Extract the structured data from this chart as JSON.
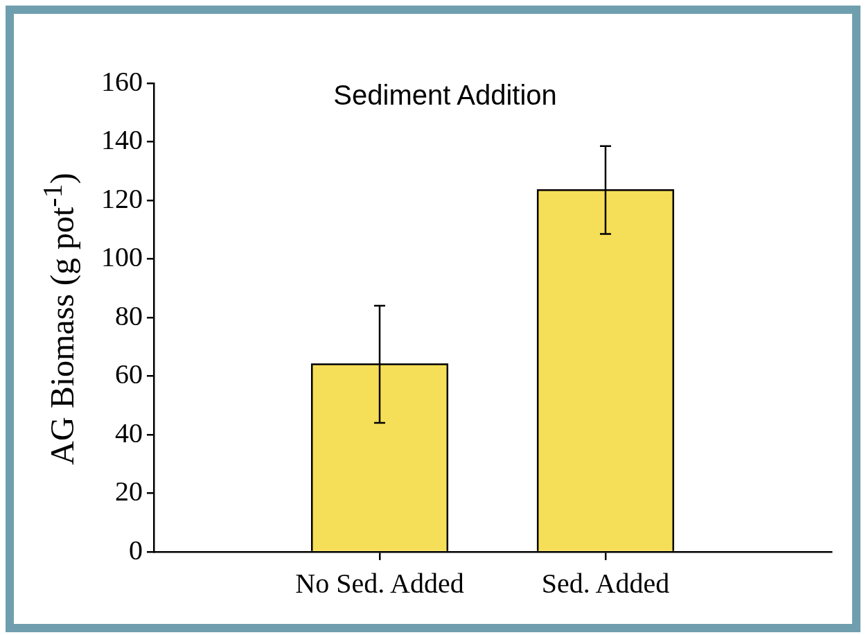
{
  "chart_data": {
    "type": "bar",
    "title": "Sediment Addition",
    "ylabel": "AG Biomass (g pot$^{-1}$)",
    "categories": [
      null,
      "No Sed. Added",
      "Sed. Added",
      null
    ],
    "values": [
      null,
      64,
      123.5,
      null
    ],
    "errors": [
      null,
      [
        44,
        84
      ],
      [
        108.5,
        138.5
      ],
      null
    ],
    "color": "#f6df58",
    "ylim": [
      0,
      160
    ],
    "yticks": [
      0,
      20,
      40,
      60,
      80,
      100,
      120,
      140,
      160
    ],
    "grid": false,
    "legend": false
  }
}
